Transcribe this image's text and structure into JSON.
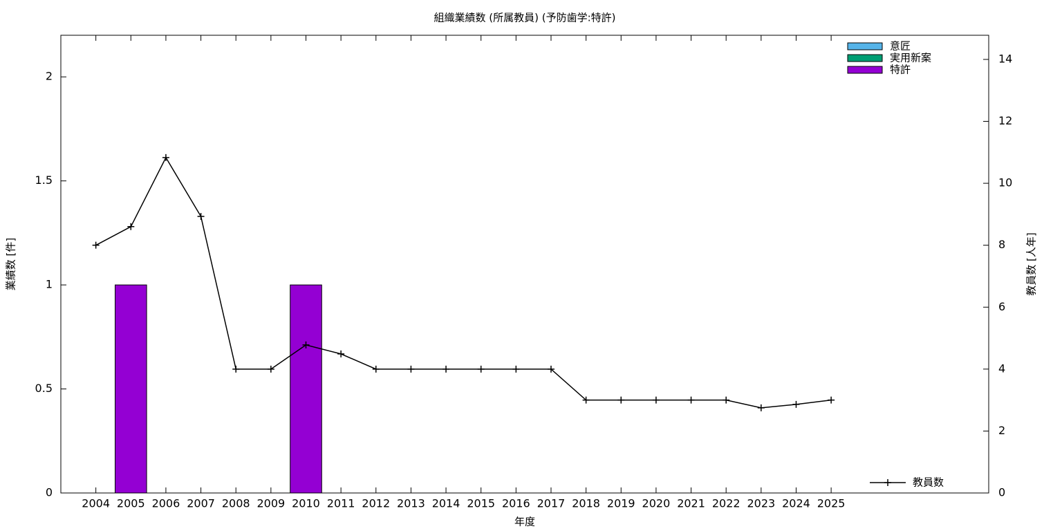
{
  "chart_data": {
    "type": "bar",
    "title": "組織業績数 (所属教員) (予防歯学:特許)",
    "x_label": "年度",
    "y_label": "業績数 [件]",
    "y2_label": "教員数 [人年]",
    "x": [
      2004,
      2005,
      2006,
      2007,
      2008,
      2009,
      2010,
      2011,
      2012,
      2013,
      2014,
      2015,
      2016,
      2017,
      2018,
      2019,
      2020,
      2021,
      2022,
      2023,
      2024,
      2025
    ],
    "xlim": [
      2003,
      2029.5
    ],
    "xticks": [
      2004,
      2005,
      2006,
      2007,
      2008,
      2009,
      2010,
      2011,
      2012,
      2013,
      2014,
      2015,
      2016,
      2017,
      2018,
      2019,
      2020,
      2021,
      2022,
      2023,
      2024,
      2025
    ],
    "ylim": [
      0,
      2.2
    ],
    "yticks": [
      0,
      0.5,
      1,
      1.5,
      2
    ],
    "y2lim": [
      0,
      14.78
    ],
    "y2ticks": [
      0,
      2,
      4,
      6,
      8,
      10,
      12,
      14
    ],
    "stacked": true,
    "series": [
      {
        "name": "意匠",
        "color": "#56b4e9",
        "values": [
          0,
          0,
          0,
          0,
          0,
          0,
          0,
          0,
          0,
          0,
          0,
          0,
          0,
          0,
          0,
          0,
          0,
          0,
          0,
          0,
          0,
          0
        ]
      },
      {
        "name": "実用新案",
        "color": "#009e73",
        "values": [
          0,
          0,
          0,
          0,
          0,
          0,
          0,
          0,
          0,
          0,
          0,
          0,
          0,
          0,
          0,
          0,
          0,
          0,
          0,
          0,
          0,
          0
        ]
      },
      {
        "name": "特許",
        "color": "#9400d3",
        "values": [
          0,
          1,
          0,
          0,
          0,
          0,
          1,
          0,
          0,
          0,
          0,
          0,
          0,
          0,
          0,
          0,
          0,
          0,
          0,
          0,
          0,
          0
        ]
      },
      {
        "name": "教員数",
        "color": "#000000",
        "type": "line",
        "axis": "y2",
        "values": [
          8,
          8.6,
          10.83,
          8.93,
          4,
          4,
          4.78,
          4.49,
          4,
          4,
          4,
          4,
          4,
          4,
          3,
          3,
          3,
          3,
          3,
          2.75,
          2.86,
          3
        ]
      }
    ]
  }
}
